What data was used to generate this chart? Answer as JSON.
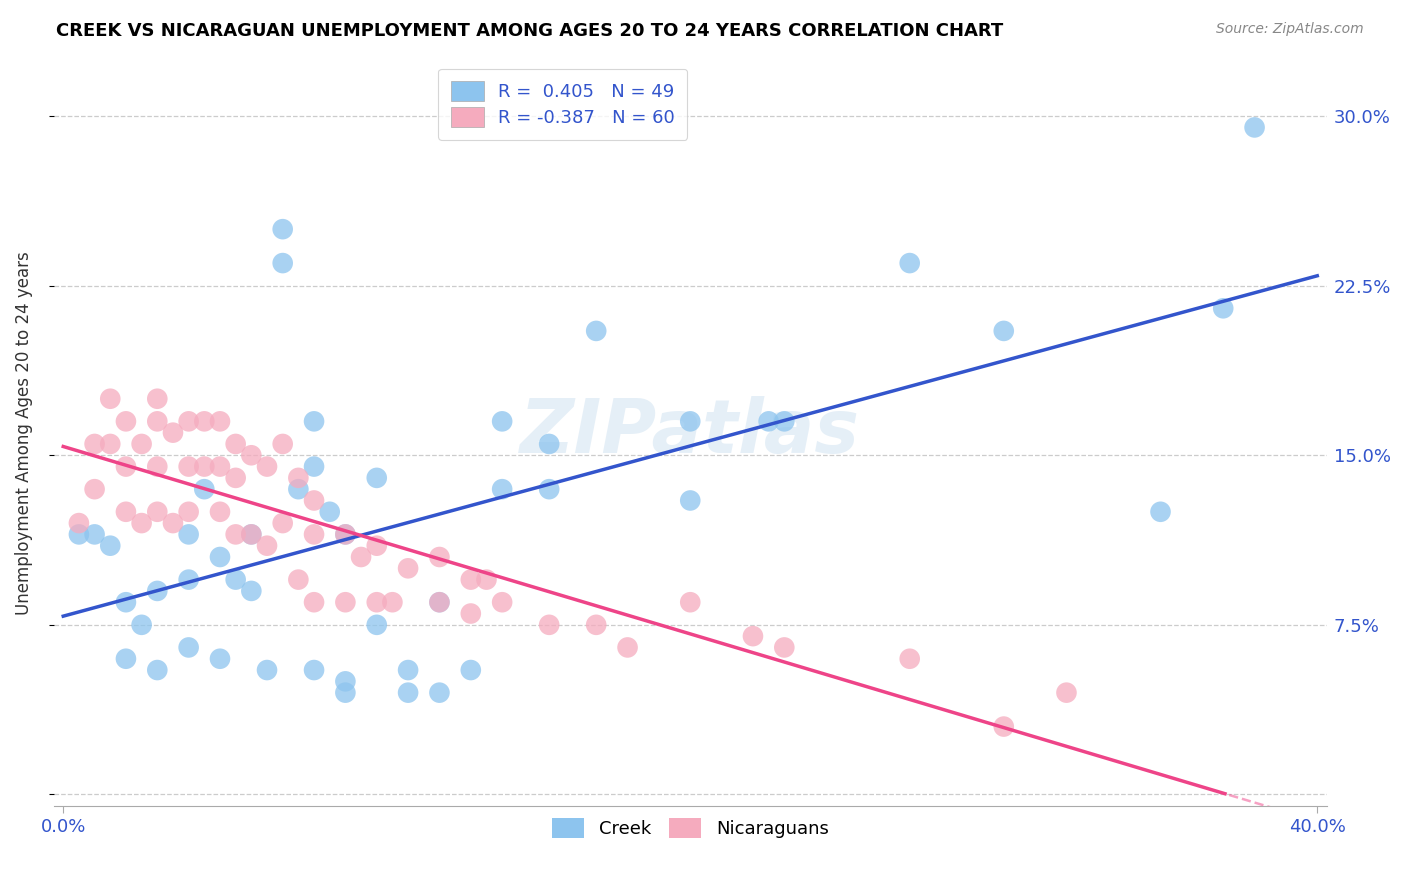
{
  "title": "CREEK VS NICARAGUAN UNEMPLOYMENT AMONG AGES 20 TO 24 YEARS CORRELATION CHART",
  "source": "Source: ZipAtlas.com",
  "ylabel": "Unemployment Among Ages 20 to 24 years",
  "xlim": [
    0.0,
    0.4
  ],
  "ylim": [
    0.0,
    0.32
  ],
  "yticks": [
    0.0,
    0.075,
    0.15,
    0.225,
    0.3
  ],
  "ytick_labels": [
    "",
    "7.5%",
    "15.0%",
    "22.5%",
    "30.0%"
  ],
  "creek_R": 0.405,
  "creek_N": 49,
  "nicaraguan_R": -0.387,
  "nicaraguan_N": 60,
  "creek_color": "#8DC4EE",
  "nicaraguan_color": "#F5ABBE",
  "creek_line_color": "#3355CC",
  "nicaraguan_line_color": "#EE4488",
  "watermark": "ZIPatlas",
  "creek_scatter_x": [
    0.005,
    0.01,
    0.015,
    0.02,
    0.025,
    0.02,
    0.03,
    0.03,
    0.04,
    0.04,
    0.04,
    0.045,
    0.05,
    0.05,
    0.055,
    0.06,
    0.06,
    0.065,
    0.07,
    0.07,
    0.075,
    0.08,
    0.08,
    0.08,
    0.085,
    0.09,
    0.09,
    0.09,
    0.1,
    0.1,
    0.11,
    0.11,
    0.12,
    0.12,
    0.13,
    0.14,
    0.14,
    0.155,
    0.155,
    0.17,
    0.2,
    0.2,
    0.225,
    0.23,
    0.27,
    0.3,
    0.35,
    0.37,
    0.38
  ],
  "creek_scatter_y": [
    0.115,
    0.115,
    0.11,
    0.085,
    0.075,
    0.06,
    0.09,
    0.055,
    0.115,
    0.095,
    0.065,
    0.135,
    0.105,
    0.06,
    0.095,
    0.115,
    0.09,
    0.055,
    0.25,
    0.235,
    0.135,
    0.165,
    0.145,
    0.055,
    0.125,
    0.115,
    0.05,
    0.045,
    0.14,
    0.075,
    0.055,
    0.045,
    0.045,
    0.085,
    0.055,
    0.165,
    0.135,
    0.155,
    0.135,
    0.205,
    0.165,
    0.13,
    0.165,
    0.165,
    0.235,
    0.205,
    0.125,
    0.215,
    0.295
  ],
  "nicaraguan_scatter_x": [
    0.005,
    0.01,
    0.01,
    0.015,
    0.015,
    0.02,
    0.02,
    0.02,
    0.025,
    0.025,
    0.03,
    0.03,
    0.03,
    0.03,
    0.035,
    0.035,
    0.04,
    0.04,
    0.04,
    0.045,
    0.045,
    0.05,
    0.05,
    0.05,
    0.055,
    0.055,
    0.055,
    0.06,
    0.06,
    0.065,
    0.065,
    0.07,
    0.07,
    0.075,
    0.075,
    0.08,
    0.08,
    0.08,
    0.09,
    0.09,
    0.095,
    0.1,
    0.1,
    0.105,
    0.11,
    0.12,
    0.12,
    0.13,
    0.13,
    0.135,
    0.14,
    0.155,
    0.17,
    0.18,
    0.2,
    0.22,
    0.23,
    0.27,
    0.3,
    0.32
  ],
  "nicaraguan_scatter_y": [
    0.12,
    0.155,
    0.135,
    0.175,
    0.155,
    0.165,
    0.145,
    0.125,
    0.155,
    0.12,
    0.175,
    0.165,
    0.145,
    0.125,
    0.16,
    0.12,
    0.165,
    0.145,
    0.125,
    0.165,
    0.145,
    0.165,
    0.145,
    0.125,
    0.155,
    0.14,
    0.115,
    0.15,
    0.115,
    0.145,
    0.11,
    0.155,
    0.12,
    0.14,
    0.095,
    0.13,
    0.115,
    0.085,
    0.115,
    0.085,
    0.105,
    0.11,
    0.085,
    0.085,
    0.1,
    0.105,
    0.085,
    0.095,
    0.08,
    0.095,
    0.085,
    0.075,
    0.075,
    0.065,
    0.085,
    0.07,
    0.065,
    0.06,
    0.03,
    0.045
  ]
}
